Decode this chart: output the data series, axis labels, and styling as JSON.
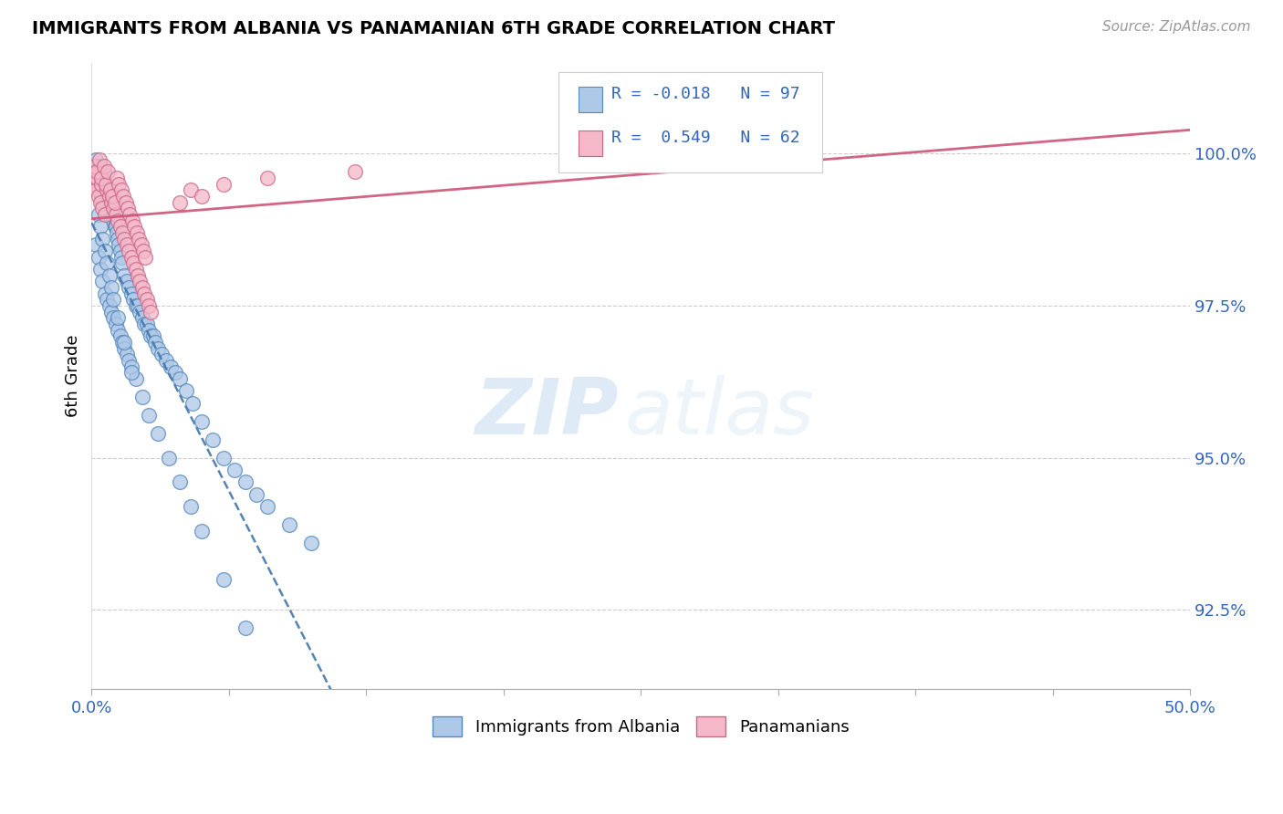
{
  "title": "IMMIGRANTS FROM ALBANIA VS PANAMANIAN 6TH GRADE CORRELATION CHART",
  "source": "Source: ZipAtlas.com",
  "ylabel_label": "6th Grade",
  "xlim": [
    0.0,
    50.0
  ],
  "ylim": [
    91.2,
    101.5
  ],
  "yticks": [
    92.5,
    95.0,
    97.5,
    100.0
  ],
  "xticks": [
    0.0,
    6.25,
    12.5,
    18.75,
    25.0,
    31.25,
    37.5,
    43.75,
    50.0
  ],
  "xtick_labels_show": [
    0,
    8
  ],
  "blue_fill": "#aec8e8",
  "blue_edge": "#5588bb",
  "pink_fill": "#f4b8c8",
  "pink_edge": "#cc6688",
  "blue_line_color": "#4477aa",
  "pink_line_color": "#cc5577",
  "watermark_zip": "ZIP",
  "watermark_atlas": "atlas",
  "legend_r1": "-0.018",
  "legend_n1": "97",
  "legend_r2": "0.549",
  "legend_n2": "62",
  "albania_x": [
    0.1,
    0.15,
    0.2,
    0.25,
    0.3,
    0.35,
    0.4,
    0.45,
    0.5,
    0.55,
    0.6,
    0.65,
    0.7,
    0.75,
    0.8,
    0.85,
    0.9,
    0.95,
    1.0,
    1.05,
    1.1,
    1.15,
    1.2,
    1.25,
    1.3,
    1.35,
    1.4,
    1.5,
    1.6,
    1.7,
    1.8,
    1.9,
    2.0,
    2.1,
    2.2,
    2.3,
    2.4,
    2.5,
    2.6,
    2.7,
    2.8,
    2.9,
    3.0,
    3.2,
    3.4,
    3.6,
    3.8,
    4.0,
    4.3,
    4.6,
    5.0,
    5.5,
    6.0,
    6.5,
    7.0,
    7.5,
    8.0,
    9.0,
    10.0,
    0.2,
    0.3,
    0.4,
    0.5,
    0.6,
    0.7,
    0.8,
    0.9,
    1.0,
    1.1,
    1.2,
    1.3,
    1.4,
    1.5,
    1.6,
    1.7,
    1.8,
    2.0,
    2.3,
    2.6,
    3.0,
    3.5,
    4.0,
    4.5,
    5.0,
    6.0,
    7.0,
    0.3,
    0.4,
    0.5,
    0.6,
    0.7,
    0.8,
    0.9,
    1.0,
    1.2,
    1.5,
    1.8
  ],
  "albania_y": [
    99.8,
    99.7,
    99.9,
    99.6,
    99.5,
    99.4,
    99.8,
    99.3,
    99.2,
    99.7,
    99.1,
    99.5,
    99.0,
    99.3,
    99.4,
    99.2,
    99.1,
    99.0,
    98.9,
    98.8,
    98.8,
    98.7,
    98.6,
    98.5,
    98.4,
    98.3,
    98.2,
    98.0,
    97.9,
    97.8,
    97.7,
    97.6,
    97.5,
    97.5,
    97.4,
    97.3,
    97.2,
    97.2,
    97.1,
    97.0,
    97.0,
    96.9,
    96.8,
    96.7,
    96.6,
    96.5,
    96.4,
    96.3,
    96.1,
    95.9,
    95.6,
    95.3,
    95.0,
    94.8,
    94.6,
    94.4,
    94.2,
    93.9,
    93.6,
    98.5,
    98.3,
    98.1,
    97.9,
    97.7,
    97.6,
    97.5,
    97.4,
    97.3,
    97.2,
    97.1,
    97.0,
    96.9,
    96.8,
    96.7,
    96.6,
    96.5,
    96.3,
    96.0,
    95.7,
    95.4,
    95.0,
    94.6,
    94.2,
    93.8,
    93.0,
    92.2,
    99.0,
    98.8,
    98.6,
    98.4,
    98.2,
    98.0,
    97.8,
    97.6,
    97.3,
    96.9,
    96.4
  ],
  "panama_x": [
    0.1,
    0.2,
    0.25,
    0.3,
    0.35,
    0.4,
    0.45,
    0.5,
    0.6,
    0.7,
    0.8,
    0.9,
    1.0,
    1.1,
    1.2,
    1.3,
    1.4,
    1.5,
    1.6,
    1.7,
    1.8,
    1.9,
    2.0,
    2.1,
    2.2,
    2.3,
    2.4,
    2.5,
    2.6,
    2.7,
    0.15,
    0.25,
    0.35,
    0.45,
    0.55,
    0.65,
    0.75,
    0.85,
    0.95,
    1.05,
    1.15,
    1.25,
    1.35,
    1.45,
    1.55,
    1.65,
    1.75,
    1.85,
    1.95,
    2.05,
    2.15,
    2.25,
    2.35,
    2.45,
    4.0,
    4.5,
    5.0,
    6.0,
    8.0,
    12.0,
    27.0,
    30.0
  ],
  "panama_y": [
    99.5,
    99.4,
    99.6,
    99.3,
    99.7,
    99.2,
    99.5,
    99.1,
    99.0,
    99.4,
    99.3,
    99.2,
    99.1,
    99.0,
    98.9,
    98.8,
    98.7,
    98.6,
    98.5,
    98.4,
    98.3,
    98.2,
    98.1,
    98.0,
    97.9,
    97.8,
    97.7,
    97.6,
    97.5,
    97.4,
    99.8,
    99.7,
    99.9,
    99.6,
    99.8,
    99.5,
    99.7,
    99.4,
    99.3,
    99.2,
    99.6,
    99.5,
    99.4,
    99.3,
    99.2,
    99.1,
    99.0,
    98.9,
    98.8,
    98.7,
    98.6,
    98.5,
    98.4,
    98.3,
    99.2,
    99.4,
    99.3,
    99.5,
    99.6,
    99.7,
    100.0,
    100.0
  ]
}
